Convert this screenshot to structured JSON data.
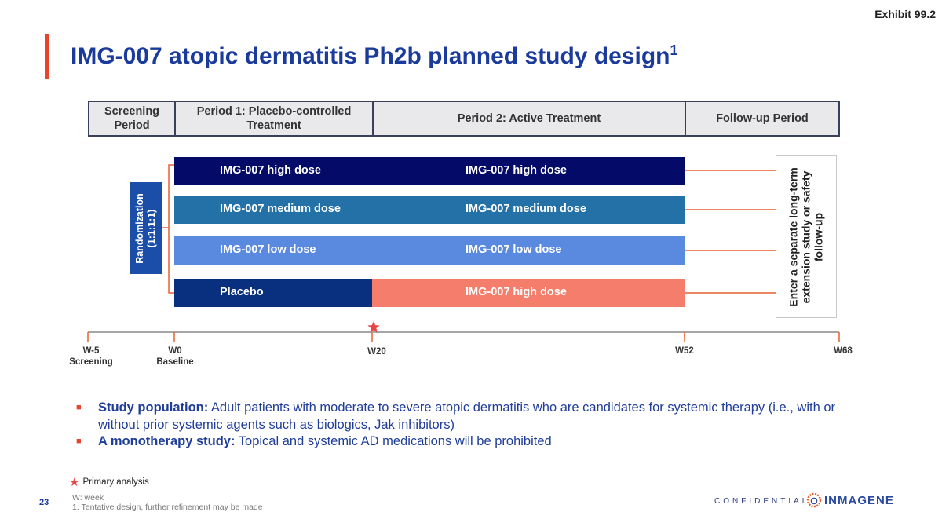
{
  "exhibit": "Exhibit 99.2",
  "title": "IMG-007 atopic dermatitis Ph2b planned study design",
  "title_sup": "1",
  "periods": [
    "Screening Period",
    "Period 1: Placebo-controlled Treatment",
    "Period 2: Active Treatment",
    "Follow-up Period"
  ],
  "randomization": {
    "line1": "Randomization",
    "line2": "(1:1:1:1)"
  },
  "arms": [
    {
      "p1": "IMG-007 high dose",
      "p2": "IMG-007 high dose",
      "p1_color": "#030a68",
      "p2_color": "#030a68"
    },
    {
      "p1": "IMG-007 medium dose",
      "p2": "IMG-007 medium dose",
      "p1_color": "#2471a7",
      "p2_color": "#2471a7"
    },
    {
      "p1": "IMG-007 low dose",
      "p2": "IMG-007 low dose",
      "p1_color": "#5a8ae0",
      "p2_color": "#5a8ae0"
    },
    {
      "p1": "Placebo",
      "p2": "IMG-007 high dose",
      "p1_color": "#08307e",
      "p2_color": "#f47e6b"
    }
  ],
  "extension": {
    "line1": "Enter a separate long-term",
    "line2": "extension study or safety",
    "line3": "follow-up"
  },
  "timeline": [
    {
      "week": "W-5",
      "label": "Screening"
    },
    {
      "week": "W0",
      "label": "Baseline"
    },
    {
      "week": "W20",
      "label": ""
    },
    {
      "week": "W52",
      "label": ""
    },
    {
      "week": "W68",
      "label": ""
    }
  ],
  "bullets": [
    {
      "bold": "Study population:",
      "text": " Adult patients with moderate to severe atopic dermatitis who are candidates for systemic therapy (i.e., with or without prior systemic agents such as biologics, Jak inhibitors)"
    },
    {
      "bold": "A monotherapy study:",
      "text": " Topical and systemic AD medications will be prohibited"
    }
  ],
  "legend": {
    "icon": "star-icon",
    "label": "Primary analysis"
  },
  "footnotes": {
    "abbr": "W: week",
    "note1": "1. Tentative design, further refinement may be made"
  },
  "page_number": "23",
  "confidential": "CONFIDENTIAL",
  "logo": "INMAGENE",
  "colors": {
    "accent": "#e8442a",
    "title": "#1a3a9c",
    "bracket": "#e8602f"
  }
}
